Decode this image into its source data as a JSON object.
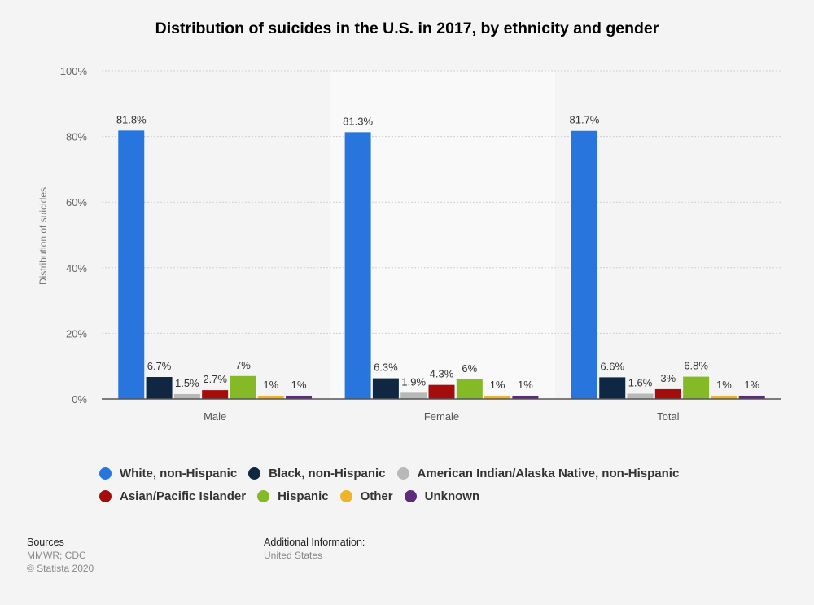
{
  "title": "Distribution of suicides in the U.S. in 2017, by ethnicity and gender",
  "chart_data": {
    "type": "bar",
    "title": "Distribution of suicides in the U.S. in 2017, by ethnicity and gender",
    "xlabel": "",
    "ylabel": "Distribution of suicides",
    "ylim": [
      0,
      100
    ],
    "yticks": [
      0,
      20,
      40,
      60,
      80,
      100
    ],
    "ytick_labels": [
      "0%",
      "20%",
      "40%",
      "60%",
      "80%",
      "100%"
    ],
    "grid": true,
    "legend_position": "bottom",
    "categories": [
      "Male",
      "Female",
      "Total"
    ],
    "series": [
      {
        "name": "White, non-Hispanic",
        "color": "#2876dd",
        "values": [
          81.8,
          81.3,
          81.7
        ],
        "labels": [
          "81.8%",
          "81.3%",
          "81.7%"
        ]
      },
      {
        "name": "Black, non-Hispanic",
        "color": "#0f2742",
        "values": [
          6.7,
          6.3,
          6.6
        ],
        "labels": [
          "6.7%",
          "6.3%",
          "6.6%"
        ]
      },
      {
        "name": "American Indian/Alaska Native, non-Hispanic",
        "color": "#b8b8b8",
        "values": [
          1.5,
          1.9,
          1.6
        ],
        "labels": [
          "1.5%",
          "1.9%",
          "1.6%"
        ]
      },
      {
        "name": "Asian/Pacific Islander",
        "color": "#a50c0c",
        "values": [
          2.7,
          4.3,
          3
        ],
        "labels": [
          "2.7%",
          "4.3%",
          "3%"
        ]
      },
      {
        "name": "Hispanic",
        "color": "#85b926",
        "values": [
          7,
          6,
          6.8
        ],
        "labels": [
          "7%",
          "6%",
          "6.8%"
        ]
      },
      {
        "name": "Other",
        "color": "#eeb42c",
        "values": [
          1,
          1,
          1
        ],
        "labels": [
          "1%",
          "1%",
          "1%"
        ]
      },
      {
        "name": "Unknown",
        "color": "#5e2a7c",
        "values": [
          1,
          1,
          1
        ],
        "labels": [
          "1%",
          "1%",
          "1%"
        ]
      }
    ]
  },
  "footer": {
    "sources_heading": "Sources",
    "sources_text": "MMWR; CDC",
    "copyright": "© Statista 2020",
    "additional_heading": "Additional Information:",
    "additional_text": "United States"
  }
}
